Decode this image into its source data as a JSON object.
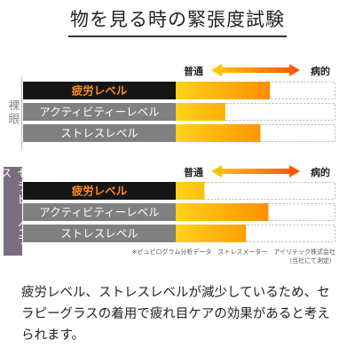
{
  "title": "物を見る時の緊張度試験",
  "colors": {
    "bar_start": "#ffd21a",
    "bar_mid": "#ff9a00",
    "bar_end": "#ff4b00",
    "highlight_label_bg": "#151515",
    "highlight_label_text": "#ff8a1e",
    "label_bg": "#808080",
    "label_text": "#ffffff",
    "side_glass_bg": "#7a6d7f",
    "arrow_left": "#ffcc00",
    "arrow_right": "#ff5000"
  },
  "chart_data": [
    {
      "type": "bar",
      "orientation": "horizontal",
      "group_label": "裸眼",
      "scale_labels": {
        "low": "普通",
        "high": "病的"
      },
      "categories": [
        "疲労レベル",
        "アクティビティーレベル",
        "ストレスレベル"
      ],
      "highlight_index": 0,
      "values": [
        0.59,
        0.31,
        0.53
      ],
      "xlim": [
        0,
        1
      ]
    },
    {
      "type": "bar",
      "orientation": "horizontal",
      "group_label": "セラピーグラス",
      "scale_labels": {
        "low": "普通",
        "high": "病的"
      },
      "categories": [
        "疲労レベル",
        "アクティビティーレベル",
        "ストレスレベル"
      ],
      "highlight_index": 0,
      "values": [
        0.18,
        0.58,
        0.44
      ],
      "xlim": [
        0,
        1
      ]
    }
  ],
  "footnote": {
    "line1": "※ビュピログラム分析データ　ストレスメーター　アイリテック株式会社",
    "line2": "（当社にて測定）"
  },
  "summary": "疲労レベル、ストレスレベルが減少しているため、セラピーグラスの着用で疲れ目ケアの効果があると考えられます。"
}
